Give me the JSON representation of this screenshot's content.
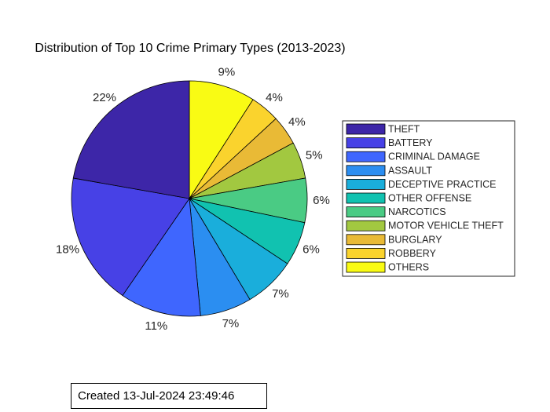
{
  "chart_data": {
    "type": "pie",
    "title": "Distribution of Top 10 Crime Primary Types (2013-2023)",
    "legend_position": "right",
    "start": "top",
    "direction": "clockwise-from-top",
    "slices": [
      {
        "name": "THEFT",
        "value": 22,
        "label": "22%",
        "color": "#3d26a8"
      },
      {
        "name": "BATTERY",
        "value": 18,
        "label": "18%",
        "color": "#4741e6"
      },
      {
        "name": "CRIMINAL DAMAGE",
        "value": 11,
        "label": "11%",
        "color": "#3f66fe"
      },
      {
        "name": "ASSAULT",
        "value": 7,
        "label": "7%",
        "color": "#2b8ef1"
      },
      {
        "name": "DECEPTIVE PRACTICE",
        "value": 7,
        "label": "7%",
        "color": "#1aaedb"
      },
      {
        "name": "OTHER OFFENSE",
        "value": 6,
        "label": "6%",
        "color": "#11c2b0"
      },
      {
        "name": "NARCOTICS",
        "value": 6,
        "label": "6%",
        "color": "#4acb84"
      },
      {
        "name": "MOTOR VEHICLE THEFT",
        "value": 5,
        "label": "5%",
        "color": "#a2c840"
      },
      {
        "name": "BURGLARY",
        "value": 4,
        "label": "4%",
        "color": "#e9ba36"
      },
      {
        "name": "ROBBERY",
        "value": 4,
        "label": "4%",
        "color": "#fad32d"
      },
      {
        "name": "OTHERS",
        "value": 9,
        "label": "9%",
        "color": "#f9fb14"
      }
    ]
  },
  "annotation": {
    "text": "Created 13-Jul-2024 23:49:46"
  }
}
